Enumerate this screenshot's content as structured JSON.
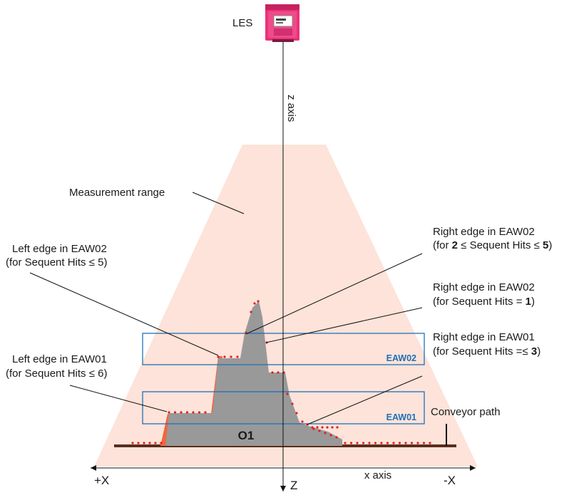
{
  "sensor": {
    "label": "LES",
    "body_color": "#e8337a"
  },
  "axes": {
    "z_axis_label": "z axis",
    "x_axis_label": "x axis",
    "plus_x": "+X",
    "minus_x": "-X",
    "z": "Z"
  },
  "measurement_range": {
    "label": "Measurement range",
    "color": "#fde3d9"
  },
  "object": {
    "label": "O1",
    "color": "#999999",
    "highlight_color": "#f0673e"
  },
  "windows": {
    "eaw02": {
      "label": "EAW02",
      "color": "#1f6fb8"
    },
    "eaw01": {
      "label": "EAW01",
      "color": "#1f6fb8"
    }
  },
  "conveyor": {
    "label": "Conveyor path",
    "color": "#5a2d1d"
  },
  "callouts": {
    "left_eaw02": {
      "line1": "Left edge in EAW02",
      "line2": "(for Sequent Hits ≤ 5)"
    },
    "left_eaw01": {
      "line1": "Left edge in EAW01",
      "line2": "(for Sequent Hits ≤ 6)"
    },
    "right_eaw02_range": {
      "line1": "Right edge in EAW02",
      "line2_pre": "(for ",
      "line2_bold1": "2",
      "line2_mid": " ≤ Sequent Hits ≤ ",
      "line2_bold2": "5",
      "line2_post": ")"
    },
    "right_eaw02_one": {
      "line1": "Right edge in EAW02",
      "line2_pre": "(for Sequent Hits = ",
      "line2_bold": "1",
      "line2_post": ")"
    },
    "right_eaw01": {
      "line1": "Right edge in EAW01",
      "line2_pre": "(for Sequent Hits =≤  ",
      "line2_bold": "3",
      "line2_post": ")"
    }
  },
  "scan_point_color": "#e02020"
}
